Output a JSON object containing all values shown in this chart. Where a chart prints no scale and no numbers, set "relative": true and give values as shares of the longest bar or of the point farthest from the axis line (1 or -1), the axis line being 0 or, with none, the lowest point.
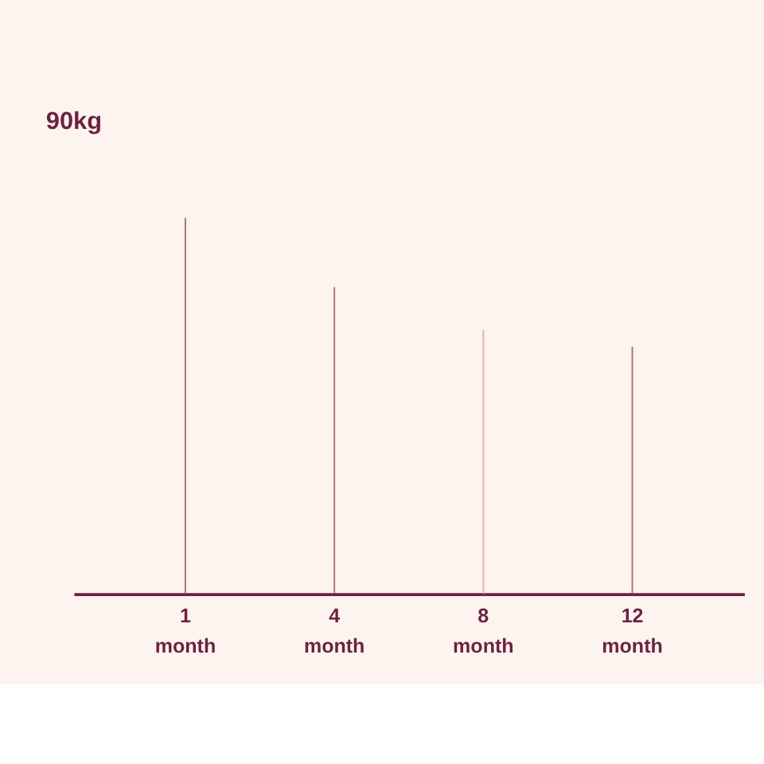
{
  "chart_data": {
    "type": "bar",
    "relative": true,
    "categories": [
      "1 month",
      "4 month",
      "8 month",
      "12 month"
    ],
    "values": [
      1,
      0.816,
      0.702,
      0.657
    ],
    "colors": [
      "#9a5a6a",
      "#9a5a6a",
      "#d4aab2",
      "#9a5a6a"
    ],
    "annotations": [
      "90kg"
    ]
  }
}
